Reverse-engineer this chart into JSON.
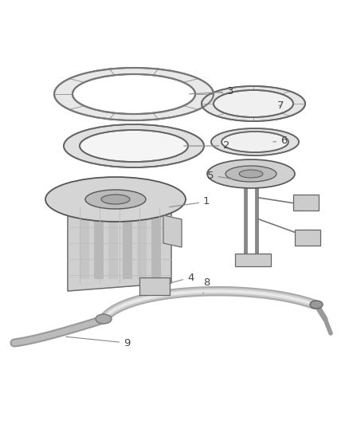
{
  "bg_color": "#ffffff",
  "line_color": "#555555",
  "dark_color": "#333333",
  "label_color": "#444444",
  "fig_width": 4.38,
  "fig_height": 5.33,
  "dpi": 100
}
